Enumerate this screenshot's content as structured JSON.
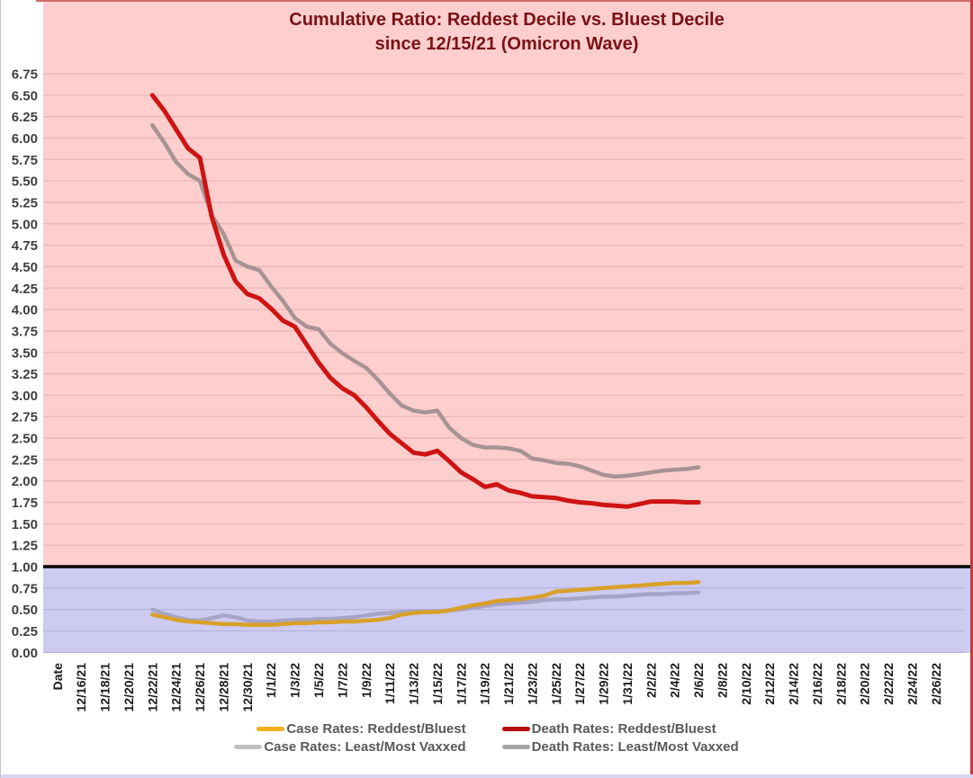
{
  "figure": {
    "title_line1": "Cumulative Ratio: Reddest Decile vs. Bluest Decile",
    "title_line2": "since 12/15/21 (Omicron Wave)",
    "title_color": "#7A1215",
    "bg_above_color": "#FCCECD",
    "bg_below_color": "#CDCBF2",
    "grid_above_color": "#EDB5B6",
    "grid_below_color": "#B7B4DC",
    "baseline_color": "#000000",
    "y_label_color": "#3F3F3F",
    "x_label_color": "#1C1C1C",
    "legend_text_color": "#595959",
    "top_border_color": "#D06A6A",
    "right_border_color": "#C23C3C",
    "bottom_strip_color": "#D8D6F2",
    "left_hairline_color": "#C6C6C6"
  },
  "chart_data": {
    "type": "line",
    "title": "Cumulative Ratio: Reddest Decile vs. Bluest Decile since 12/15/21 (Omicron Wave)",
    "xlabel": "",
    "ylabel": "",
    "ylim": [
      0.0,
      7.6
    ],
    "ytick_step": 0.25,
    "grid": "horizontal-only",
    "legend_position": "bottom",
    "baseline_value": 1.0,
    "y_tick_labels": [
      "0.00",
      "0.25",
      "0.50",
      "0.75",
      "1.00",
      "1.25",
      "1.50",
      "1.75",
      "2.00",
      "2.25",
      "2.50",
      "2.75",
      "3.00",
      "3.25",
      "3.50",
      "3.75",
      "4.00",
      "4.25",
      "4.50",
      "4.75",
      "5.00",
      "5.25",
      "5.50",
      "5.75",
      "6.00",
      "6.25",
      "6.50",
      "6.75"
    ],
    "x_tick_labels": [
      "Date",
      "12/16/21",
      "12/18/21",
      "12/20/21",
      "12/22/21",
      "12/24/21",
      "12/26/21",
      "12/28/21",
      "12/30/21",
      "1/1/22",
      "1/3/22",
      "1/5/22",
      "1/7/22",
      "1/9/22",
      "1/11/22",
      "1/13/22",
      "1/15/22",
      "1/17/22",
      "1/19/22",
      "1/21/22",
      "1/23/22",
      "1/25/22",
      "1/27/22",
      "1/29/22",
      "1/31/22",
      "2/2/22",
      "2/4/22",
      "2/6/22",
      "2/8/22",
      "2/10/22",
      "2/12/22",
      "2/14/22",
      "2/16/22",
      "2/18/22",
      "2/20/22",
      "2/22/22",
      "2/24/22",
      "2/26/22"
    ],
    "dates": [
      "12/22/21",
      "12/23/21",
      "12/24/21",
      "12/25/21",
      "12/26/21",
      "12/27/21",
      "12/28/21",
      "12/29/21",
      "12/30/21",
      "12/31/21",
      "1/1/22",
      "1/2/22",
      "1/3/22",
      "1/4/22",
      "1/5/22",
      "1/6/22",
      "1/7/22",
      "1/8/22",
      "1/9/22",
      "1/10/22",
      "1/11/22",
      "1/12/22",
      "1/13/22",
      "1/14/22",
      "1/15/22",
      "1/16/22",
      "1/17/22",
      "1/18/22",
      "1/19/22",
      "1/20/22",
      "1/21/22",
      "1/22/22",
      "1/23/22",
      "1/24/22",
      "1/25/22",
      "1/26/22",
      "1/27/22",
      "1/28/22",
      "1/29/22",
      "1/30/22",
      "1/31/22",
      "2/1/22",
      "2/2/22",
      "2/3/22",
      "2/4/22",
      "2/5/22",
      "2/6/22"
    ],
    "series": [
      {
        "key": "case_reddest_bluest",
        "label": "Case Rates: Reddest/Bluest",
        "legend_color": "#F2B01E",
        "line_color": "#D9A029",
        "width": 4.5,
        "values": [
          0.44,
          0.41,
          0.38,
          0.36,
          0.35,
          0.34,
          0.33,
          0.33,
          0.32,
          0.32,
          0.32,
          0.33,
          0.34,
          0.34,
          0.35,
          0.35,
          0.36,
          0.36,
          0.37,
          0.38,
          0.4,
          0.44,
          0.46,
          0.47,
          0.47,
          0.49,
          0.52,
          0.55,
          0.57,
          0.6,
          0.61,
          0.62,
          0.64,
          0.66,
          0.71,
          0.72,
          0.73,
          0.74,
          0.75,
          0.76,
          0.77,
          0.78,
          0.79,
          0.8,
          0.81,
          0.81,
          0.82
        ]
      },
      {
        "key": "death_reddest_bluest",
        "label": "Death Rates: Reddest/Bluest",
        "legend_color": "#B50D0D",
        "line_color": "#CE1313",
        "width": 5,
        "values": [
          6.5,
          6.32,
          6.1,
          5.88,
          5.77,
          5.08,
          4.64,
          4.33,
          4.18,
          4.13,
          4.01,
          3.87,
          3.8,
          3.59,
          3.38,
          3.2,
          3.08,
          3.0,
          2.86,
          2.7,
          2.55,
          2.44,
          2.33,
          2.31,
          2.35,
          2.23,
          2.1,
          2.02,
          1.93,
          1.96,
          1.89,
          1.86,
          1.82,
          1.81,
          1.8,
          1.77,
          1.75,
          1.74,
          1.72,
          1.71,
          1.7,
          1.73,
          1.76,
          1.76,
          1.76,
          1.75,
          1.75
        ]
      },
      {
        "key": "case_least_most_vaxxed",
        "label": "Case Rates: Least/Most Vaxxed",
        "legend_color": "#BFBFBF",
        "line_color": "#A8A4C6",
        "width": 4.5,
        "values": [
          0.5,
          0.45,
          0.41,
          0.38,
          0.37,
          0.4,
          0.43,
          0.41,
          0.37,
          0.36,
          0.36,
          0.37,
          0.38,
          0.38,
          0.39,
          0.39,
          0.4,
          0.41,
          0.43,
          0.45,
          0.46,
          0.47,
          0.48,
          0.48,
          0.48,
          0.49,
          0.5,
          0.52,
          0.54,
          0.56,
          0.57,
          0.58,
          0.59,
          0.61,
          0.62,
          0.62,
          0.63,
          0.64,
          0.65,
          0.65,
          0.66,
          0.67,
          0.68,
          0.68,
          0.69,
          0.69,
          0.7
        ]
      },
      {
        "key": "death_least_most_vaxxed",
        "label": "Death Rates: Least/Most Vaxxed",
        "legend_color": "#A6A6A6",
        "line_color": "#A79394",
        "width": 4.5,
        "values": [
          6.15,
          5.95,
          5.72,
          5.58,
          5.5,
          5.1,
          4.88,
          4.57,
          4.5,
          4.46,
          4.27,
          4.1,
          3.9,
          3.8,
          3.77,
          3.6,
          3.49,
          3.4,
          3.32,
          3.18,
          3.02,
          2.88,
          2.82,
          2.8,
          2.82,
          2.62,
          2.5,
          2.42,
          2.39,
          2.39,
          2.38,
          2.35,
          2.26,
          2.24,
          2.21,
          2.2,
          2.17,
          2.12,
          2.07,
          2.05,
          2.06,
          2.08,
          2.1,
          2.12,
          2.13,
          2.14,
          2.16
        ]
      }
    ],
    "draw_order": [
      2,
      3,
      0,
      1
    ],
    "legend_rows": [
      [
        0,
        1
      ],
      [
        2,
        3
      ]
    ]
  }
}
